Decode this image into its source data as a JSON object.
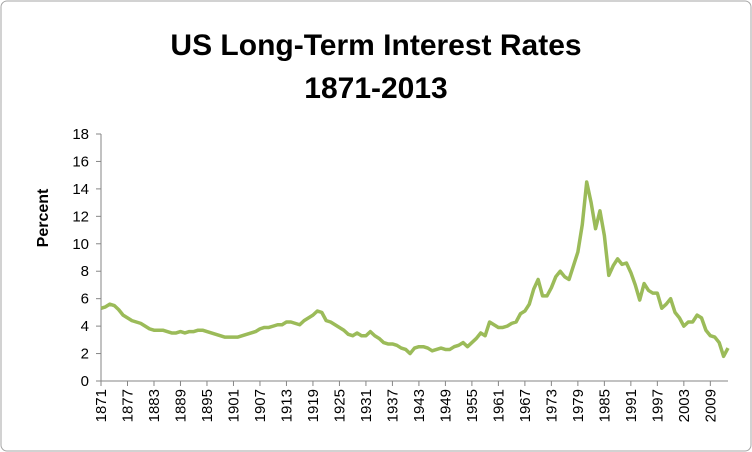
{
  "chart_data": {
    "type": "line",
    "title": "US Long-Term Interest Rates",
    "subtitle": "1871-2013",
    "y_label": "Percent",
    "x": [
      1871,
      1872,
      1873,
      1874,
      1875,
      1876,
      1877,
      1878,
      1879,
      1880,
      1881,
      1882,
      1883,
      1884,
      1885,
      1886,
      1887,
      1888,
      1889,
      1890,
      1891,
      1892,
      1893,
      1894,
      1895,
      1896,
      1897,
      1898,
      1899,
      1900,
      1901,
      1902,
      1903,
      1904,
      1905,
      1906,
      1907,
      1908,
      1909,
      1910,
      1911,
      1912,
      1913,
      1914,
      1915,
      1916,
      1917,
      1918,
      1919,
      1920,
      1921,
      1922,
      1923,
      1924,
      1925,
      1926,
      1927,
      1928,
      1929,
      1930,
      1931,
      1932,
      1933,
      1934,
      1935,
      1936,
      1937,
      1938,
      1939,
      1940,
      1941,
      1942,
      1943,
      1944,
      1945,
      1946,
      1947,
      1948,
      1949,
      1950,
      1951,
      1952,
      1953,
      1954,
      1955,
      1956,
      1957,
      1958,
      1959,
      1960,
      1961,
      1962,
      1963,
      1964,
      1965,
      1966,
      1967,
      1968,
      1969,
      1970,
      1971,
      1972,
      1973,
      1974,
      1975,
      1976,
      1977,
      1978,
      1979,
      1980,
      1981,
      1982,
      1983,
      1984,
      1985,
      1986,
      1987,
      1988,
      1989,
      1990,
      1991,
      1992,
      1993,
      1994,
      1995,
      1996,
      1997,
      1998,
      1999,
      2000,
      2001,
      2002,
      2003,
      2004,
      2005,
      2006,
      2007,
      2008,
      2009,
      2010,
      2011,
      2012,
      2013
    ],
    "values": [
      5.3,
      5.4,
      5.6,
      5.5,
      5.2,
      4.8,
      4.6,
      4.4,
      4.3,
      4.2,
      4.0,
      3.8,
      3.7,
      3.7,
      3.7,
      3.6,
      3.5,
      3.5,
      3.6,
      3.5,
      3.6,
      3.6,
      3.7,
      3.7,
      3.6,
      3.5,
      3.4,
      3.3,
      3.2,
      3.2,
      3.2,
      3.2,
      3.3,
      3.4,
      3.5,
      3.6,
      3.8,
      3.9,
      3.9,
      4.0,
      4.1,
      4.1,
      4.3,
      4.3,
      4.2,
      4.1,
      4.4,
      4.6,
      4.8,
      5.1,
      5.0,
      4.4,
      4.3,
      4.1,
      3.9,
      3.7,
      3.4,
      3.3,
      3.5,
      3.3,
      3.3,
      3.6,
      3.3,
      3.1,
      2.8,
      2.7,
      2.7,
      2.6,
      2.4,
      2.3,
      2.0,
      2.4,
      2.5,
      2.5,
      2.4,
      2.2,
      2.3,
      2.4,
      2.3,
      2.3,
      2.5,
      2.6,
      2.8,
      2.5,
      2.8,
      3.1,
      3.5,
      3.3,
      4.3,
      4.1,
      3.9,
      3.9,
      4.0,
      4.2,
      4.3,
      4.9,
      5.1,
      5.6,
      6.7,
      7.4,
      6.2,
      6.2,
      6.8,
      7.6,
      8.0,
      7.6,
      7.4,
      8.4,
      9.4,
      11.4,
      14.5,
      13.0,
      11.1,
      12.4,
      10.6,
      7.7,
      8.4,
      8.9,
      8.5,
      8.6,
      7.9,
      7.0,
      5.9,
      7.1,
      6.6,
      6.4,
      6.4,
      5.3,
      5.6,
      6.0,
      5.0,
      4.6,
      4.0,
      4.3,
      4.3,
      4.8,
      4.6,
      3.7,
      3.3,
      3.2,
      2.8,
      1.8,
      2.4
    ],
    "color": "#9bbb59",
    "xlim": [
      1871,
      2013
    ],
    "xticks": [
      1871,
      1877,
      1883,
      1889,
      1895,
      1901,
      1907,
      1913,
      1919,
      1925,
      1931,
      1937,
      1943,
      1949,
      1955,
      1961,
      1967,
      1973,
      1979,
      1985,
      1991,
      1997,
      2003,
      2009
    ],
    "ylim": [
      0,
      18
    ],
    "yticks": [
      0,
      2,
      4,
      6,
      8,
      10,
      12,
      14,
      16,
      18
    ],
    "grid": false
  }
}
